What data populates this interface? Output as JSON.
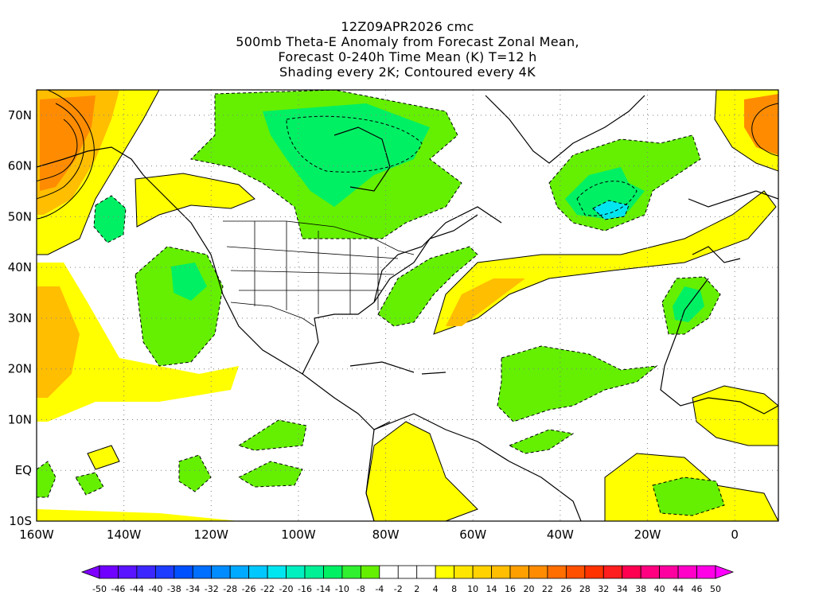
{
  "title": {
    "line1": "12Z09APR2026 cmc",
    "line2": "500mb Theta-E Anomaly from Forecast Zonal Mean,",
    "line3": "Forecast 0-240h Time Mean (K) T=12 h",
    "line4": "Shading every 2K; Contoured every 4K"
  },
  "map": {
    "lon_labels": [
      "160W",
      "140W",
      "120W",
      "100W",
      "80W",
      "60W",
      "40W",
      "20W",
      "0"
    ],
    "lat_labels": [
      "70N",
      "60N",
      "50N",
      "40N",
      "30N",
      "20N",
      "10N",
      "EQ",
      "10S"
    ],
    "lon_values": [
      -160,
      -140,
      -120,
      -100,
      -80,
      -60,
      -40,
      -20,
      0
    ],
    "lat_values": [
      70,
      60,
      50,
      40,
      30,
      20,
      10,
      0,
      -10
    ],
    "lon_range": [
      -160,
      10
    ],
    "lat_range": [
      -10,
      75
    ],
    "grid": "dotted"
  },
  "colorbar": {
    "labels": [
      "-50",
      "-46",
      "-44",
      "-40",
      "-38",
      "-34",
      "-32",
      "-28",
      "-26",
      "-22",
      "-20",
      "-16",
      "-14",
      "-10",
      "-8",
      "-4",
      "-2",
      "2",
      "4",
      "8",
      "10",
      "14",
      "16",
      "20",
      "22",
      "26",
      "28",
      "32",
      "34",
      "38",
      "40",
      "44",
      "46",
      "50"
    ],
    "colors": [
      "#8000ff",
      "#7000ff",
      "#5a14ff",
      "#3c28ff",
      "#1e3cff",
      "#0050ff",
      "#006eff",
      "#008cff",
      "#00aaff",
      "#00c8ff",
      "#00e6f0",
      "#00f0c0",
      "#00f096",
      "#00f064",
      "#30f030",
      "#64f000",
      "#ffffff",
      "#ffffff",
      "#ffffff",
      "#ffff00",
      "#ffe600",
      "#ffd200",
      "#ffbe00",
      "#ffa000",
      "#ff8c00",
      "#ff6e00",
      "#ff5000",
      "#ff3200",
      "#ff1e1e",
      "#ff0050",
      "#ff0080",
      "#ff00a0",
      "#ff00c8",
      "#ff00e6",
      "#ff00ff"
    ]
  },
  "colors": {
    "positive_light": "#ffff00",
    "positive_mid": "#ffd200",
    "positive_strong": "#ff8c00",
    "negative_light": "#64f000",
    "negative_mid": "#00f064",
    "negative_strong": "#00e6f0"
  }
}
